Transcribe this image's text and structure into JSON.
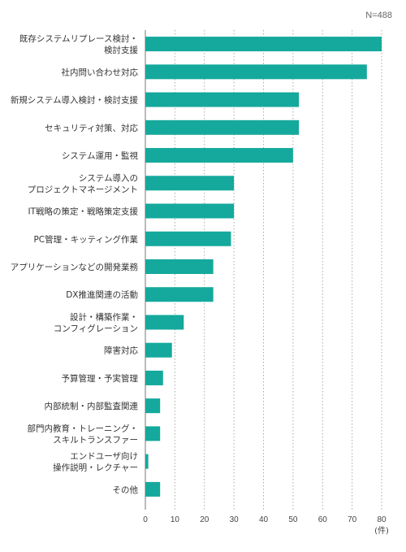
{
  "chart_data": {
    "type": "bar",
    "orientation": "horizontal",
    "note": "N=488",
    "x_unit_label": "(件)",
    "xlim": [
      0,
      80
    ],
    "x_ticks": [
      0,
      10,
      20,
      30,
      40,
      50,
      60,
      70,
      80
    ],
    "grid": "vertical-dotted",
    "bar_color": "#14a99c",
    "categories": [
      [
        "既存システムリプレース検討・",
        "検討支援"
      ],
      [
        "社内問い合わせ対応"
      ],
      [
        "新規システム導入検討・検討支援"
      ],
      [
        "セキュリティ対策、対応"
      ],
      [
        "システム運用・監視"
      ],
      [
        "システム導入の",
        "プロジェクトマネージメント"
      ],
      [
        "IT戦略の策定・戦略策定支援"
      ],
      [
        "PC管理・キッティング作業"
      ],
      [
        "アプリケーションなどの開発業務"
      ],
      [
        "DX推進関連の活動"
      ],
      [
        "設計・構築作業・",
        "コンフィグレーション"
      ],
      [
        "障害対応"
      ],
      [
        "予算管理・予実管理"
      ],
      [
        "内部統制・内部監査関連"
      ],
      [
        "部門内教育・トレーニング・",
        "スキルトランスファー"
      ],
      [
        "エンドユーザ向け",
        "操作説明・レクチャー"
      ],
      [
        "その他"
      ]
    ],
    "values": [
      80,
      75,
      52,
      52,
      50,
      30,
      30,
      29,
      23,
      23,
      13,
      9,
      6,
      5,
      5,
      1,
      5
    ]
  }
}
